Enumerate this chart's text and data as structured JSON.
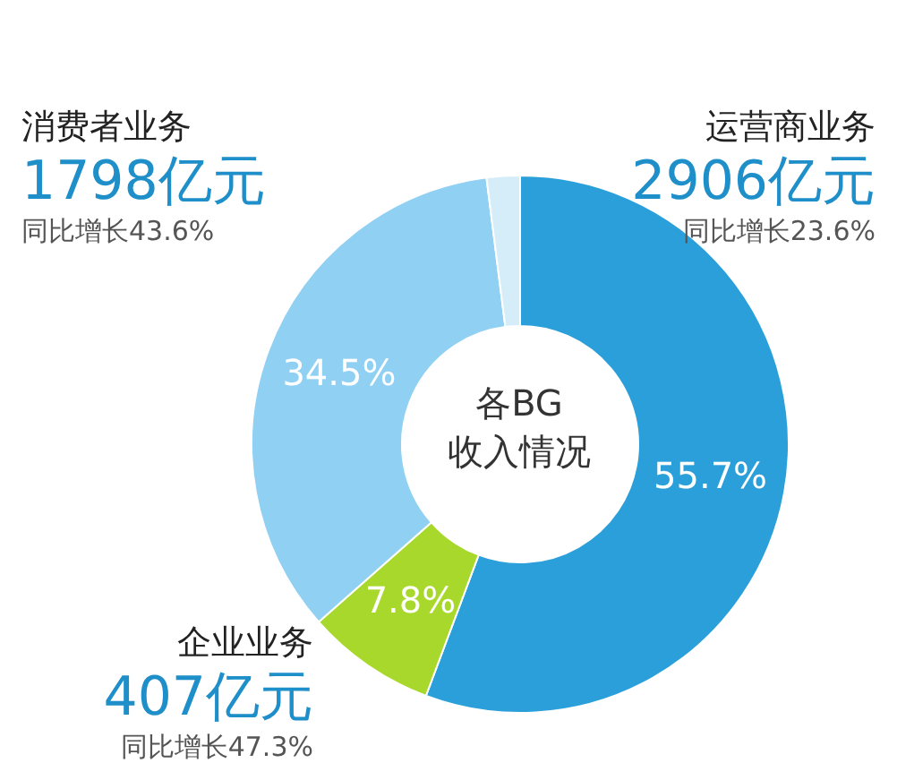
{
  "chart_data": {
    "type": "donut",
    "title": "各BG\n收入情况",
    "categories": [
      "运营商业务",
      "企业业务",
      "消费者业务",
      null
    ],
    "values": [
      55.7,
      7.8,
      34.5,
      2.0
    ],
    "colors": [
      "#2b9fd9",
      "#a8d82b",
      "#8fd0f3",
      "#d4edf9"
    ],
    "value_labels": [
      "55.7%",
      "7.8%",
      "34.5%",
      null
    ],
    "annotations": [
      "2906亿元",
      "同比增长23.6%",
      "407亿元",
      "同比增长47.3%",
      "1798亿元",
      "同比增长43.6%"
    ],
    "legend": false
  }
}
